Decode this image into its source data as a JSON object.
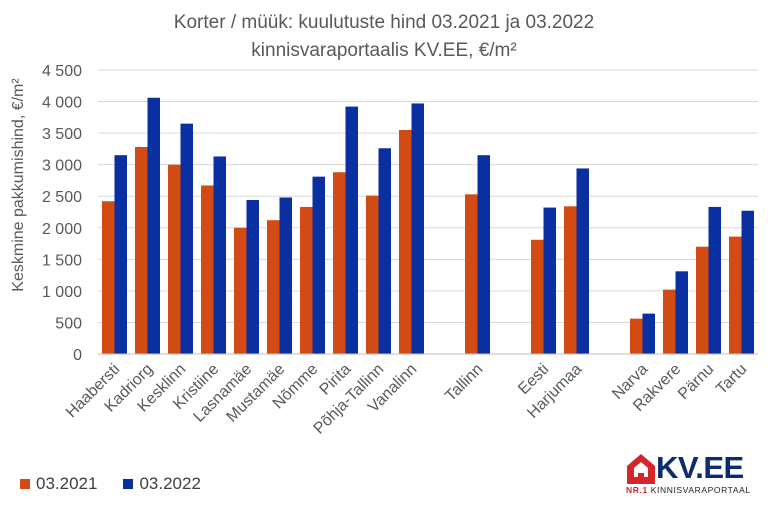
{
  "chart_data": {
    "type": "bar",
    "title": "Korter / müük: kuulutuste hind 03.2021 ja 03.2022",
    "subtitle": "kinnisvaraportaalis KV.EE, €/m²",
    "ylabel": "Keskmine pakkumishind, €/m²",
    "xlabel": "",
    "ylim": [
      0,
      4500
    ],
    "yticks": [
      0,
      500,
      1000,
      1500,
      2000,
      2500,
      3000,
      3500,
      4000,
      4500
    ],
    "ytick_labels": [
      "0",
      "500",
      "1 000",
      "1 500",
      "2 000",
      "2 500",
      "3 000",
      "3 500",
      "4 000",
      "4 500"
    ],
    "grid": true,
    "legend": "bottom-left",
    "groups": [
      [
        "Haabersti",
        "Kadriorg",
        "Kesklinn",
        "Kristiine",
        "Lasnamäe",
        "Mustamäe",
        "Nõmme",
        "Pirita",
        "Põhja-Tallinn",
        "Vanalinn"
      ],
      [
        "Tallinn"
      ],
      [
        "Eesti",
        "Harjumaa"
      ],
      [
        "Narva",
        "Rakvere",
        "Pärnu",
        "Tartu"
      ]
    ],
    "categories": [
      "Haabersti",
      "Kadriorg",
      "Kesklinn",
      "Kristiine",
      "Lasnamäe",
      "Mustamäe",
      "Nõmme",
      "Pirita",
      "Põhja-Tallinn",
      "Vanalinn",
      "Tallinn",
      "Eesti",
      "Harjumaa",
      "Narva",
      "Rakvere",
      "Pärnu",
      "Tartu"
    ],
    "series": [
      {
        "name": "03.2021",
        "color": "#d24a14",
        "values": [
          2420,
          3280,
          3000,
          2670,
          2000,
          2120,
          2330,
          2880,
          2510,
          3550,
          2530,
          1810,
          2340,
          560,
          1020,
          1700,
          1860
        ]
      },
      {
        "name": "03.2022",
        "color": "#0a2fa0",
        "values": [
          3150,
          4060,
          3650,
          3130,
          2440,
          2480,
          2810,
          3920,
          3260,
          3970,
          3150,
          2320,
          2940,
          640,
          1310,
          2330,
          2270
        ]
      }
    ]
  },
  "logo": {
    "text": "KV.EE",
    "tag_nr": "NR.1",
    "tag_rest": " KINNISVARAPORTAAL"
  },
  "colors": {
    "grid": "#d9d9d9",
    "axis": "#bfbfbf",
    "text": "#595959",
    "logo_red": "#d6262a",
    "logo_navy": "#0d2c6e"
  }
}
